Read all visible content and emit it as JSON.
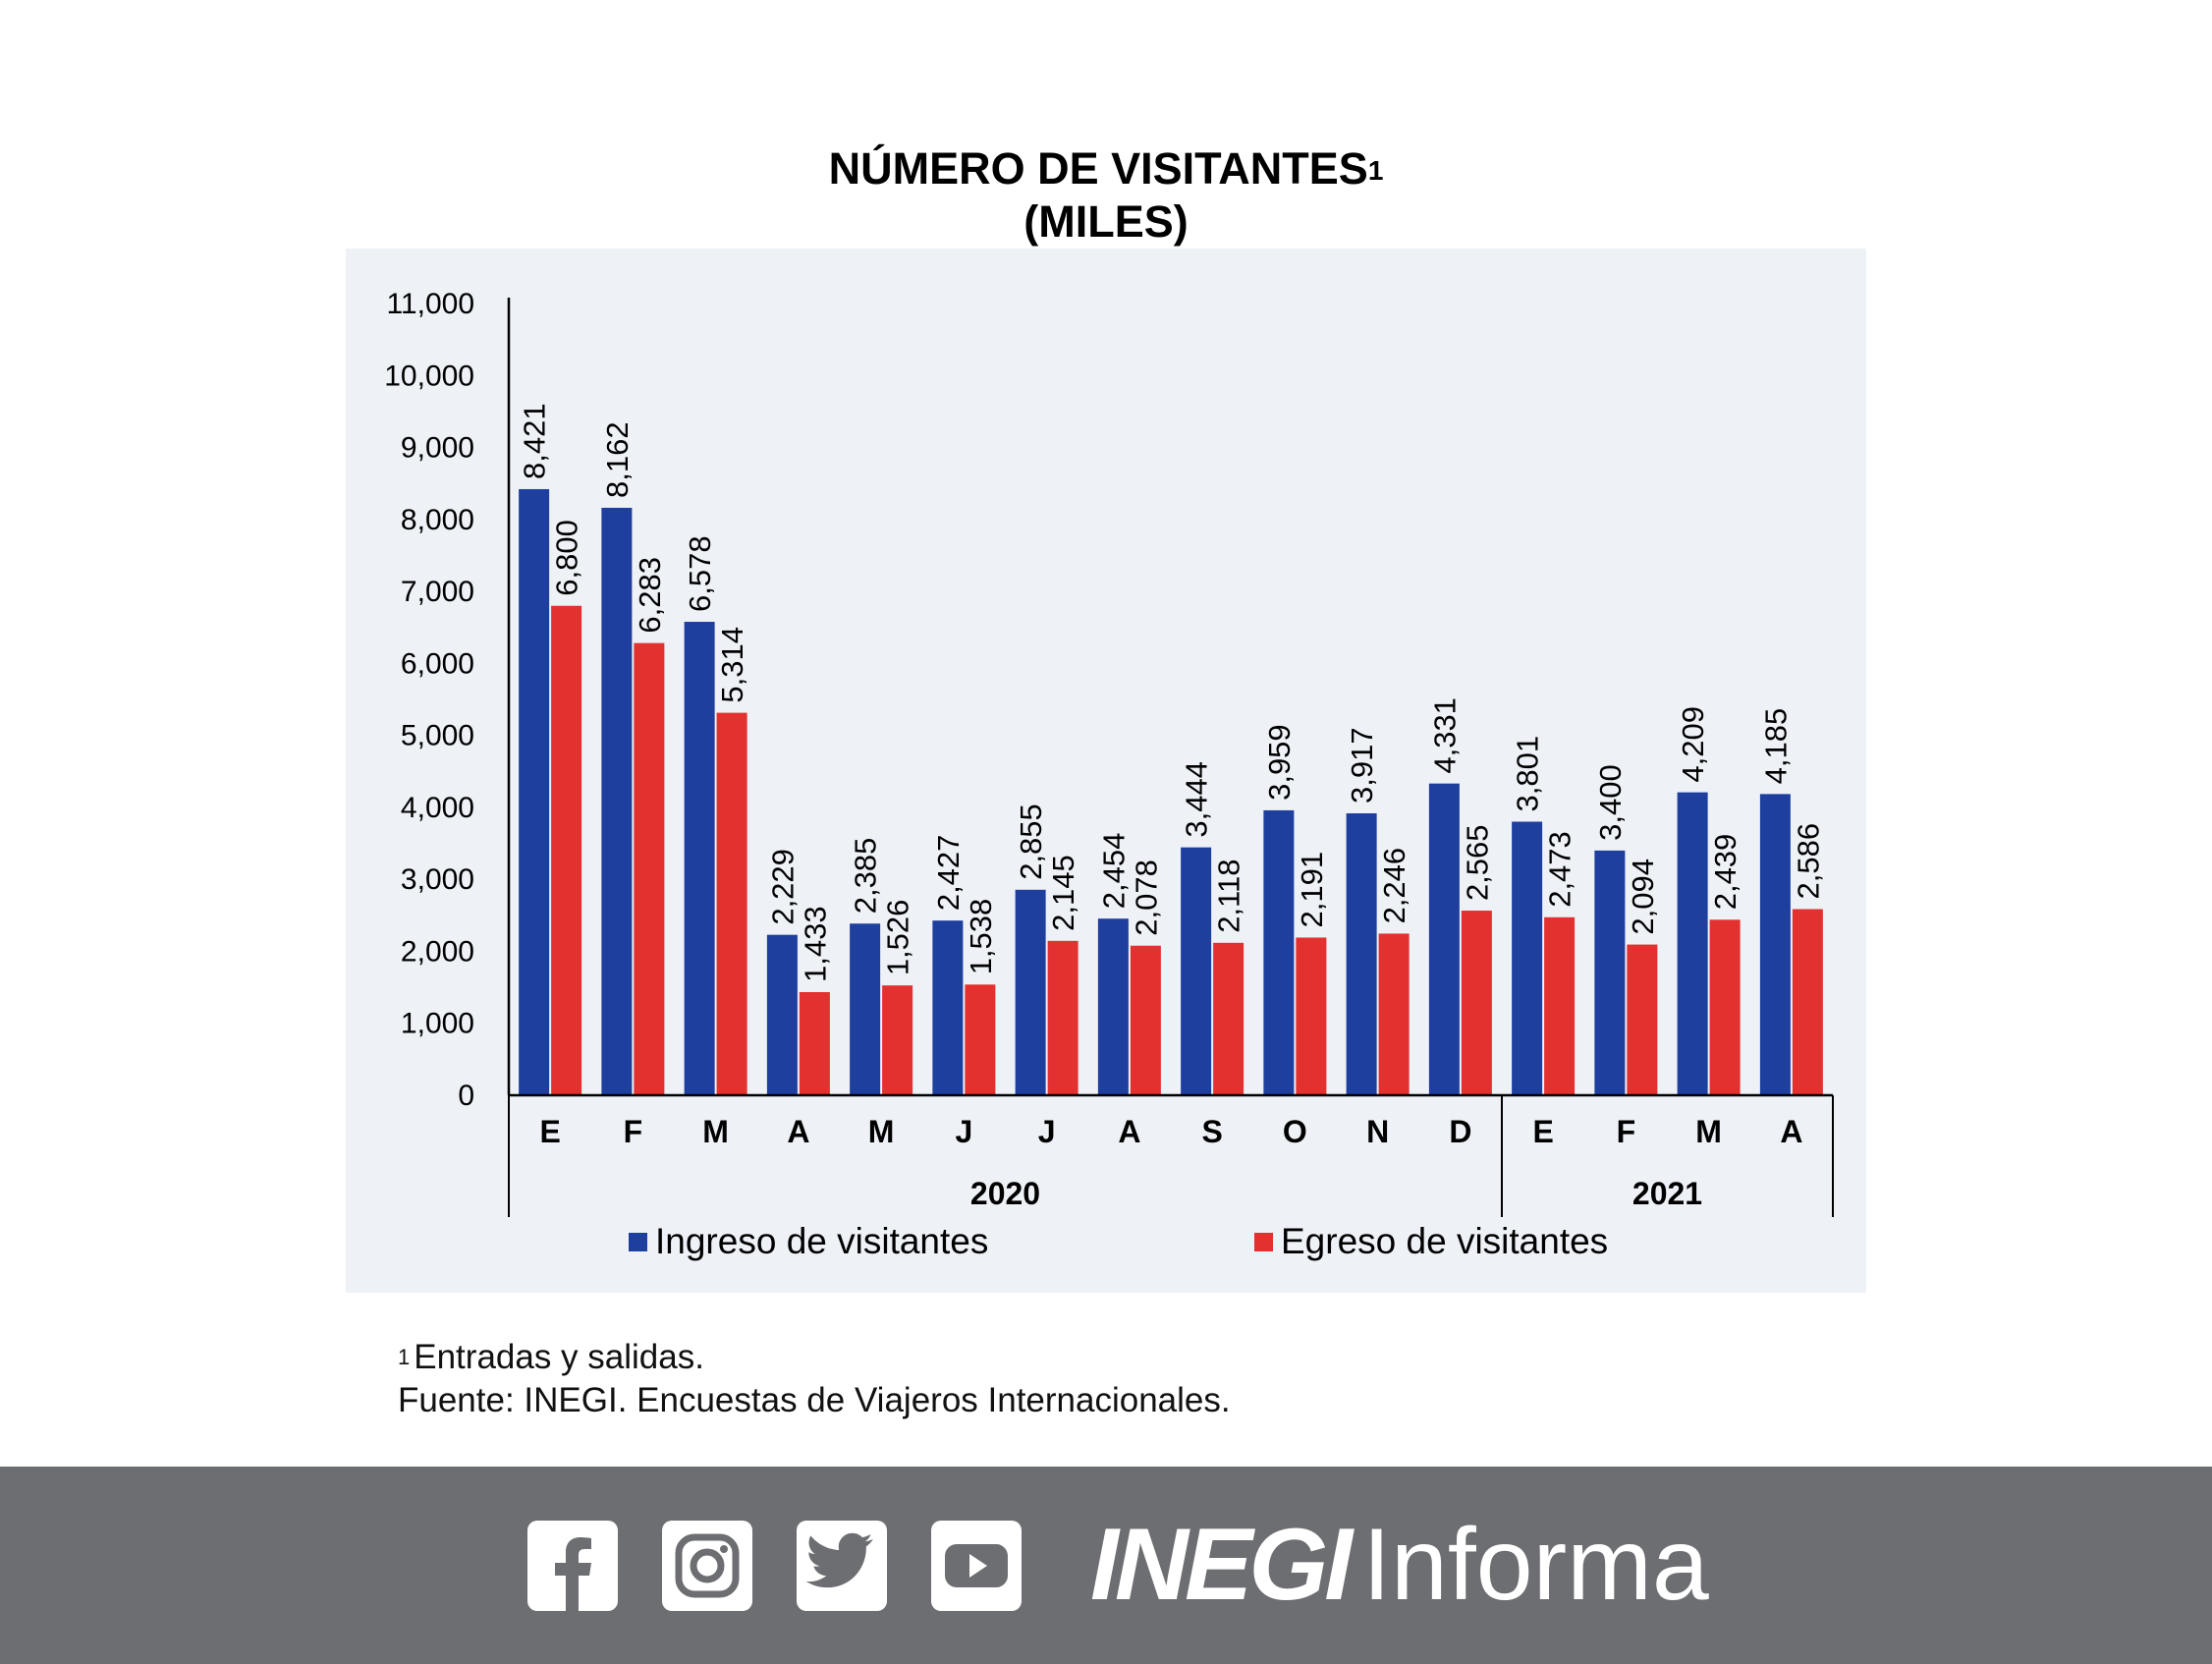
{
  "chart_data": {
    "type": "bar",
    "title": "NÚMERO DE VISITANTES",
    "title_superscript": "1",
    "subtitle": "(MILES)",
    "categories": [
      "E",
      "F",
      "M",
      "A",
      "M",
      "J",
      "J",
      "A",
      "S",
      "O",
      "N",
      "D",
      "E",
      "F",
      "M",
      "A"
    ],
    "groups": [
      {
        "label": "2020",
        "count": 12
      },
      {
        "label": "2021",
        "count": 4
      }
    ],
    "series": [
      {
        "name": "Ingreso de visitantes",
        "color": "#1f3f9f",
        "values": [
          8421,
          8162,
          6578,
          2229,
          2385,
          2427,
          2855,
          2454,
          3444,
          3959,
          3917,
          4331,
          3801,
          3400,
          4209,
          4185
        ]
      },
      {
        "name": "Egreso de visitantes",
        "color": "#e3312f",
        "values": [
          6800,
          6283,
          5314,
          1433,
          1526,
          1538,
          2145,
          2078,
          2118,
          2191,
          2246,
          2565,
          2473,
          2094,
          2439,
          2586
        ]
      }
    ],
    "ylim": [
      0,
      11000
    ],
    "yticks": [
      0,
      1000,
      2000,
      3000,
      4000,
      5000,
      6000,
      7000,
      8000,
      9000,
      10000,
      11000
    ],
    "ytick_labels": [
      "0",
      "1,000",
      "2,000",
      "3,000",
      "4,000",
      "5,000",
      "6,000",
      "7,000",
      "8,000",
      "9,000",
      "10,000",
      "11,000"
    ],
    "xlabel": "",
    "ylabel": "",
    "grid": false,
    "legend_position": "bottom",
    "data_labels": true,
    "background": "#eef2f7"
  },
  "footnote": {
    "marker": "1",
    "line1": "Entradas y salidas.",
    "line2": "Fuente: INEGI. Encuestas de Viajeros Internacionales."
  },
  "footer": {
    "background": "#6d6e71",
    "social_icons": [
      "facebook-icon",
      "instagram-icon",
      "twitter-icon",
      "youtube-icon"
    ],
    "brand_bold": "INEGI",
    "brand_light": "Informa"
  }
}
